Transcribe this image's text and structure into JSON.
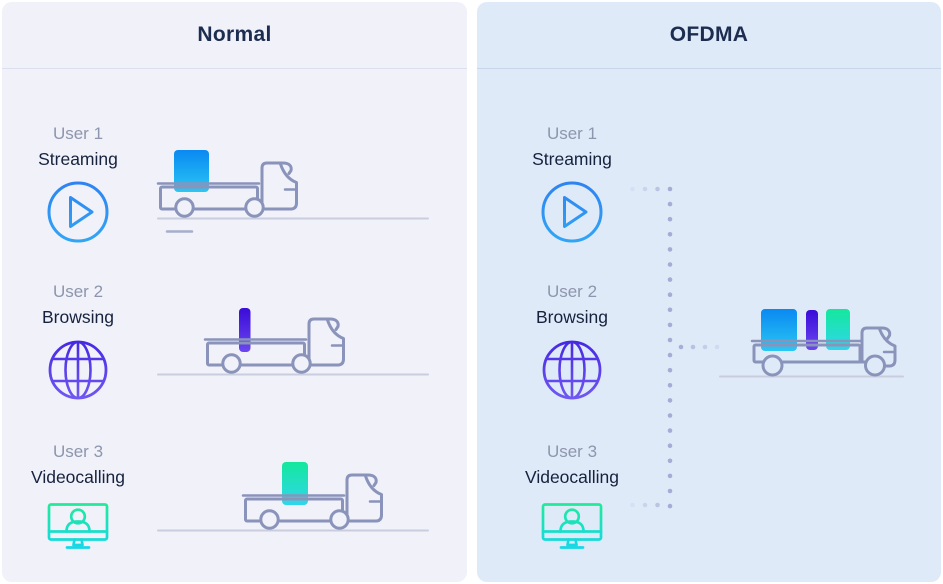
{
  "panels": [
    {
      "id": "normal",
      "title": "Normal"
    },
    {
      "id": "ofdma",
      "title": "OFDMA"
    }
  ],
  "users": [
    {
      "name": "User 1",
      "activity": "Streaming",
      "icon": "play-icon"
    },
    {
      "name": "User 2",
      "activity": "Browsing",
      "icon": "globe-icon"
    },
    {
      "name": "User 3",
      "activity": "Videocalling",
      "icon": "videocall-icon"
    }
  ],
  "cargo": {
    "streaming": {
      "gradient_top": "#0989F2",
      "gradient_bottom": "#2BC7F3"
    },
    "browsing": {
      "gradient_top": "#3A0CD8",
      "gradient_bottom": "#6B46F0"
    },
    "videocalling": {
      "gradient_top": "#14E89C",
      "gradient_bottom": "#30D6EC"
    }
  },
  "icon_colors": {
    "play": {
      "top": "#2E83F1",
      "bottom": "#31A5F5"
    },
    "globe": {
      "top": "#4628E3",
      "bottom": "#7058F2"
    },
    "videocall": {
      "top": "#21EA9B",
      "bottom": "#14D5F2"
    }
  },
  "colors": {
    "page-bg": "#FFFFFF",
    "panel-normal-bg": "#F0F1F9",
    "panel-ofdma-bg": "#DFEAF9",
    "divider-normal": "#DCDFEE",
    "divider-ofdma": "#C8D6EA",
    "title": "#1D2D50",
    "user-name": "#8D96AC",
    "user-activity": "#16223E",
    "truck-line": "#8A94BA",
    "ground-line": "#C9CDDE",
    "dots": "#9CA6D0"
  }
}
